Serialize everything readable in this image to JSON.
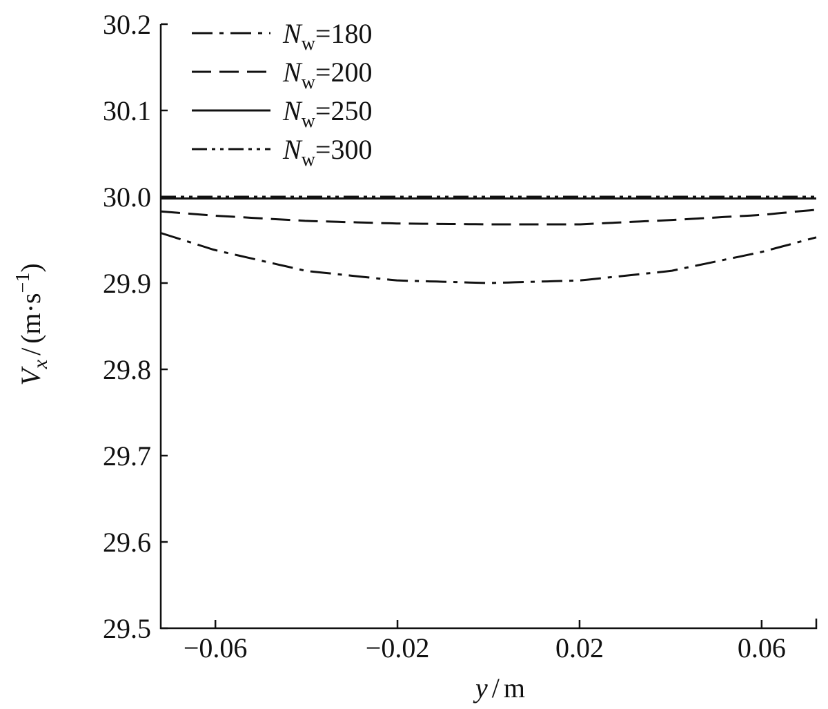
{
  "chart_data": {
    "type": "line",
    "xlabel": {
      "var": "y",
      "unit": "m"
    },
    "ylabel": {
      "var": "V",
      "sub": "x",
      "unit": "(m·s",
      "unit_sup": "−1",
      "unit_close": ")"
    },
    "xlim": [
      -0.072,
      0.072
    ],
    "ylim": [
      29.5,
      30.2
    ],
    "x_ticks": [
      -0.06,
      -0.02,
      0.02,
      0.06
    ],
    "x_tick_labels": [
      "−0.06",
      "−0.02",
      "0.02",
      "0.06"
    ],
    "y_ticks": [
      29.5,
      29.6,
      29.7,
      29.8,
      29.9,
      30.0,
      30.1,
      30.2
    ],
    "y_tick_labels": [
      "29.5",
      "29.6",
      "29.7",
      "29.8",
      "29.9",
      "30.0",
      "30.1",
      "30.2"
    ],
    "legend_position": "top-left",
    "series": [
      {
        "name": "N_w=180",
        "label_main": "N",
        "label_sub": "w",
        "label_value": "=180",
        "style": "dash-dot",
        "x": [
          -0.072,
          -0.06,
          -0.04,
          -0.02,
          0.0,
          0.02,
          0.04,
          0.06,
          0.072
        ],
        "y": [
          29.958,
          29.938,
          29.914,
          29.903,
          29.9,
          29.903,
          29.914,
          29.936,
          29.953
        ]
      },
      {
        "name": "N_w=200",
        "label_main": "N",
        "label_sub": "w",
        "label_value": "=200",
        "style": "dashed",
        "x": [
          -0.072,
          -0.06,
          -0.04,
          -0.02,
          0.0,
          0.02,
          0.04,
          0.06,
          0.072
        ],
        "y": [
          29.983,
          29.978,
          29.972,
          29.969,
          29.968,
          29.968,
          29.973,
          29.979,
          29.985
        ]
      },
      {
        "name": "N_w=250",
        "label_main": "N",
        "label_sub": "w",
        "label_value": "=250",
        "style": "solid",
        "x": [
          -0.072,
          -0.04,
          0.0,
          0.04,
          0.072
        ],
        "y": [
          29.998,
          29.998,
          29.998,
          29.998,
          29.998
        ]
      },
      {
        "name": "N_w=300",
        "label_main": "N",
        "label_sub": "w",
        "label_value": "=300",
        "style": "dash-dot-dot",
        "x": [
          -0.072,
          -0.04,
          0.0,
          0.04,
          0.072
        ],
        "y": [
          30.0,
          30.0,
          30.0,
          30.0,
          30.0
        ]
      }
    ]
  }
}
